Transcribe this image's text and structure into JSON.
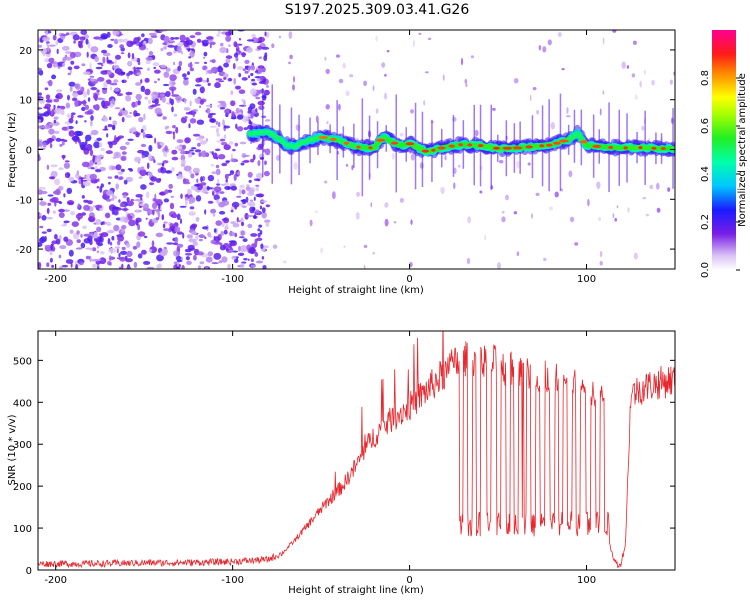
{
  "title": "S197.2025.309.03.41.G26",
  "colors": {
    "snr_line": "#e8262c",
    "noise": "#7a1fe6",
    "axis": "#000000"
  },
  "chart_data": [
    {
      "type": "heatmap",
      "xlabel": "Height of straight line (km)",
      "ylabel": "Frequency (Hz)",
      "xlim": [
        -210,
        150
      ],
      "ylim": [
        -24,
        24
      ],
      "xticks": [
        -200,
        -100,
        0,
        100
      ],
      "xtick_labels": [
        "-200",
        "-100",
        "0",
        "100"
      ],
      "yticks": [
        -20,
        -10,
        0,
        10,
        20
      ],
      "ytick_labels": [
        "-20",
        "-10",
        "0",
        "10",
        "20"
      ],
      "colorbar": {
        "label": "Normalized spectral amplitude",
        "range": [
          0,
          1
        ],
        "ticks": [
          0.0,
          0.2,
          0.4,
          0.6,
          0.8
        ],
        "tick_labels": [
          "0.0",
          "0.2",
          "0.4",
          "0.6",
          "0.8"
        ]
      },
      "signal_track": {
        "x": [
          -90,
          -80,
          -75,
          -70,
          -65,
          -60,
          -50,
          -40,
          -30,
          -20,
          -15,
          -10,
          -5,
          0,
          10,
          20,
          30,
          40,
          50,
          60,
          70,
          80,
          90,
          95,
          100,
          110,
          120,
          130,
          140,
          150
        ],
        "freq": [
          3.2,
          3.5,
          2.5,
          1.0,
          0.5,
          1.5,
          2.5,
          1.8,
          0.5,
          0.3,
          2.5,
          1.5,
          0.8,
          1.2,
          -0.5,
          0.5,
          1.0,
          0.8,
          0.2,
          0.3,
          0.6,
          0.9,
          2.0,
          3.2,
          0.8,
          0.5,
          0.3,
          0.4,
          0.2,
          0.2
        ],
        "amplitude": [
          0.5,
          0.45,
          0.55,
          0.4,
          0.45,
          0.5,
          0.6,
          0.65,
          0.75,
          0.9,
          0.7,
          0.85,
          0.8,
          0.9,
          0.95,
          0.8,
          0.85,
          0.9,
          0.95,
          0.85,
          0.9,
          0.85,
          0.7,
          0.5,
          0.8,
          0.85,
          0.9,
          0.95,
          0.9,
          0.85
        ]
      }
    },
    {
      "type": "line",
      "xlabel": "Height of straight line (km)",
      "ylabel": "SNR (10 * v/v)",
      "xlim": [
        -210,
        150
      ],
      "ylim": [
        0,
        570
      ],
      "xticks": [
        -200,
        -100,
        0,
        100
      ],
      "xtick_labels": [
        "-200",
        "-100",
        "0",
        "100"
      ],
      "yticks": [
        0,
        100,
        200,
        300,
        400,
        500
      ],
      "ytick_labels": [
        "0",
        "100",
        "200",
        "300",
        "400",
        "500"
      ],
      "series": [
        {
          "name": "SNR",
          "x": [
            -210,
            -180,
            -150,
            -120,
            -100,
            -80,
            -72,
            -65,
            -55,
            -45,
            -38,
            -30,
            -25,
            -20,
            -10,
            0,
            10,
            20,
            25,
            30,
            35,
            40,
            45,
            50,
            55,
            60,
            65,
            70,
            75,
            80,
            85,
            90,
            95,
            100,
            105,
            110,
            113,
            116,
            119,
            122,
            125,
            130,
            135,
            140,
            145,
            150
          ],
          "values": [
            15,
            15,
            17,
            18,
            20,
            25,
            40,
            70,
            120,
            170,
            200,
            250,
            290,
            320,
            360,
            390,
            430,
            470,
            490,
            500,
            505,
            510,
            500,
            490,
            480,
            475,
            470,
            465,
            460,
            455,
            450,
            445,
            440,
            430,
            420,
            410,
            60,
            20,
            10,
            60,
            420,
            430,
            440,
            445,
            450,
            455
          ]
        }
      ]
    }
  ]
}
